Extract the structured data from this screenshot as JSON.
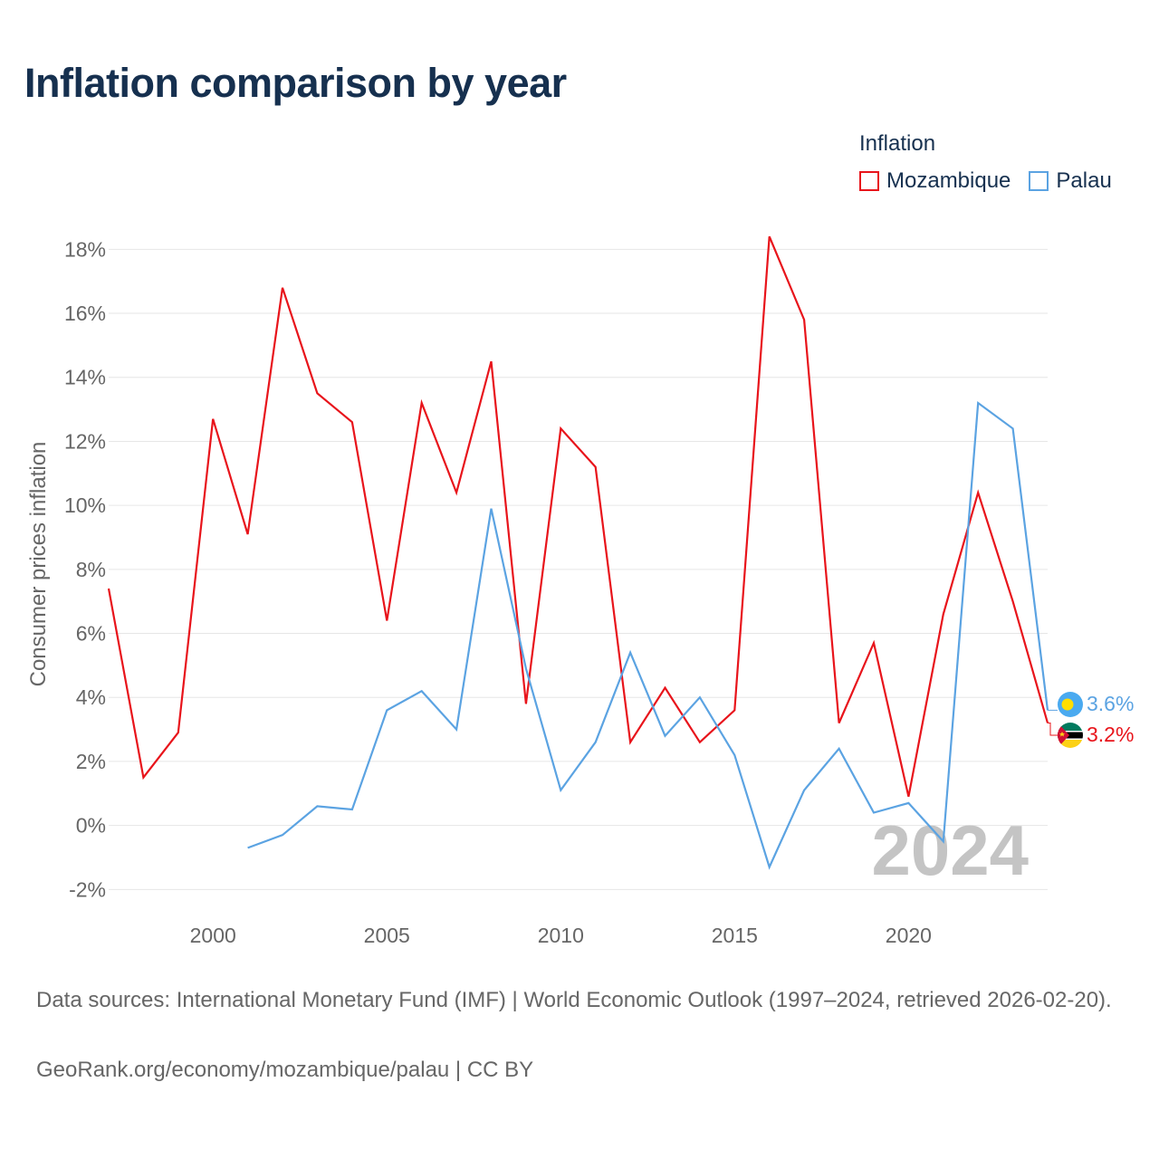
{
  "title": "Inflation comparison by year",
  "legend": {
    "title": "Inflation",
    "items": [
      {
        "label": "Mozambique",
        "color": "#e8141b"
      },
      {
        "label": "Palau",
        "color": "#5ba3e2"
      }
    ]
  },
  "chart_data": {
    "type": "line",
    "title": "Inflation comparison by year",
    "xlabel": "",
    "ylabel": "Consumer prices inflation",
    "xlim": [
      1997,
      2024
    ],
    "ylim": [
      -2.5,
      19
    ],
    "x_ticks": [
      2000,
      2005,
      2010,
      2015,
      2020
    ],
    "y_ticks": [
      -2,
      0,
      2,
      4,
      6,
      8,
      10,
      12,
      14,
      16,
      18
    ],
    "y_tick_labels": [
      "-2%",
      "0%",
      "2%",
      "4%",
      "6%",
      "8%",
      "10%",
      "12%",
      "14%",
      "16%",
      "18%"
    ],
    "grid": true,
    "legend_position": "top-right",
    "year_label": "2024",
    "series": [
      {
        "name": "Mozambique",
        "color": "#e8141b",
        "x": [
          1997,
          1998,
          1999,
          2000,
          2001,
          2002,
          2003,
          2004,
          2005,
          2006,
          2007,
          2008,
          2009,
          2010,
          2011,
          2012,
          2013,
          2014,
          2015,
          2016,
          2017,
          2018,
          2019,
          2020,
          2021,
          2022,
          2023,
          2024
        ],
        "values": [
          7.4,
          1.5,
          2.9,
          12.7,
          9.1,
          16.8,
          13.5,
          12.6,
          6.4,
          13.2,
          10.4,
          14.5,
          3.8,
          12.4,
          11.2,
          2.6,
          4.3,
          2.6,
          3.6,
          18.4,
          15.8,
          3.2,
          5.7,
          0.9,
          6.6,
          10.4,
          7.0,
          3.2
        ],
        "end_label": "3.2%"
      },
      {
        "name": "Palau",
        "color": "#5ba3e2",
        "x": [
          2001,
          2002,
          2003,
          2004,
          2005,
          2006,
          2007,
          2008,
          2009,
          2010,
          2011,
          2012,
          2013,
          2014,
          2015,
          2016,
          2017,
          2018,
          2019,
          2020,
          2021,
          2022,
          2023,
          2024
        ],
        "values": [
          -0.7,
          -0.3,
          0.6,
          0.5,
          3.6,
          4.2,
          3.0,
          9.9,
          4.9,
          1.1,
          2.6,
          5.4,
          2.8,
          4.0,
          2.2,
          -1.3,
          1.1,
          2.4,
          0.4,
          0.7,
          -0.5,
          13.2,
          12.4,
          3.6
        ],
        "end_label": "3.6%"
      }
    ]
  },
  "footer": {
    "sources": "Data sources: International Monetary Fund (IMF) | World Economic Outlook (1997–2024, retrieved 2026-02-20).",
    "credit": "GeoRank.org/economy/mozambique/palau | CC BY"
  }
}
